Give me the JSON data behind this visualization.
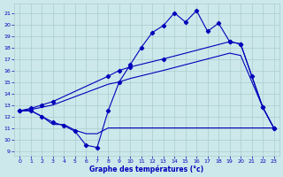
{
  "xlabel": "Graphe des températures (°c)",
  "bg_color": "#cce8ea",
  "grid_color": "#aacccc",
  "line_color": "#0000bb",
  "xlim": [
    -0.5,
    23.5
  ],
  "ylim": [
    8.6,
    21.8
  ],
  "yticks": [
    9,
    10,
    11,
    12,
    13,
    14,
    15,
    16,
    17,
    18,
    19,
    20,
    21
  ],
  "xticks": [
    0,
    1,
    2,
    3,
    4,
    5,
    6,
    7,
    8,
    9,
    10,
    11,
    12,
    13,
    14,
    15,
    16,
    17,
    18,
    19,
    20,
    21,
    22,
    23
  ],
  "curve_zigzag_x": [
    0,
    1,
    2,
    3,
    4,
    5,
    6,
    7,
    8,
    9,
    10,
    11,
    12,
    13,
    14,
    15,
    16,
    17,
    18,
    19,
    20,
    21,
    22,
    23
  ],
  "curve_zigzag_y": [
    12.5,
    12.5,
    12.0,
    11.5,
    11.2,
    10.7,
    9.5,
    9.3,
    12.5,
    15.0,
    16.5,
    18.0,
    19.3,
    19.9,
    21.0,
    20.2,
    21.2,
    19.4,
    20.1,
    18.5,
    18.3,
    15.5,
    12.8,
    11.0
  ],
  "curve_flat_x": [
    0,
    1,
    2,
    3,
    4,
    5,
    6,
    7,
    8,
    9,
    10,
    11,
    12,
    13,
    14,
    15,
    16,
    17,
    18,
    19,
    20,
    21,
    22,
    23
  ],
  "curve_flat_y": [
    12.5,
    12.5,
    12.0,
    11.3,
    11.3,
    10.8,
    10.5,
    10.5,
    11.0,
    11.0,
    11.0,
    11.0,
    11.0,
    11.0,
    11.0,
    11.0,
    11.0,
    11.0,
    11.0,
    11.0,
    11.0,
    11.0,
    11.0,
    11.0
  ],
  "curve_diag_upper_x": [
    0,
    1,
    2,
    3,
    8,
    9,
    10,
    13,
    19,
    20,
    22,
    23
  ],
  "curve_diag_upper_y": [
    12.5,
    12.7,
    13.0,
    13.3,
    15.5,
    16.0,
    16.3,
    17.0,
    18.5,
    18.3,
    12.8,
    11.0
  ],
  "curve_diag_lower_x": [
    0,
    1,
    2,
    3,
    8,
    9,
    10,
    13,
    19,
    20,
    22,
    23
  ],
  "curve_diag_lower_y": [
    12.5,
    12.6,
    12.8,
    13.0,
    14.8,
    15.0,
    15.3,
    16.0,
    17.5,
    17.3,
    12.8,
    11.0
  ]
}
